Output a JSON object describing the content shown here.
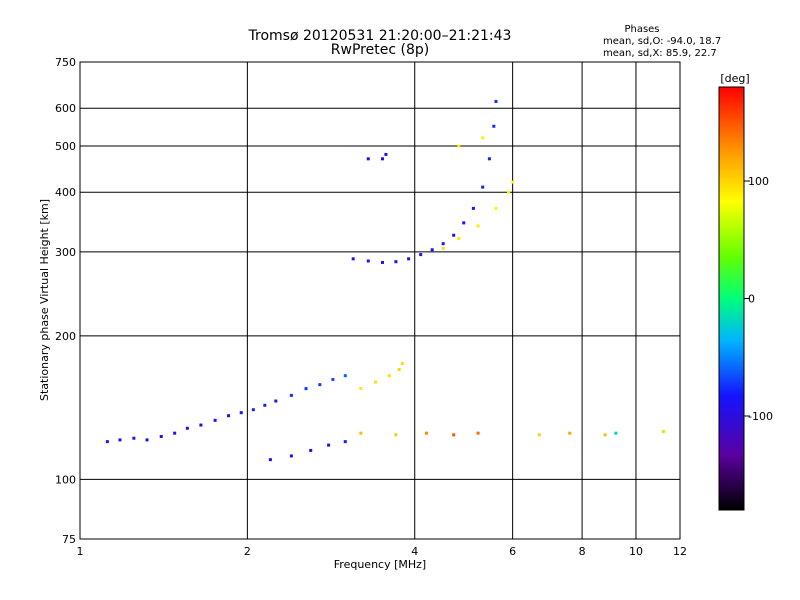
{
  "chart_data": {
    "type": "scatter",
    "title": "Tromsø 20120531 21:20:00–21:21:43",
    "subtitle": "RwPretec (8p)",
    "phases_panel": {
      "heading": "Phases",
      "line1": "mean, sd,O: -94.0, 18.7",
      "line2": "mean, sd,X: 85.9, 22.7"
    },
    "xlabel": "Frequency [MHz]",
    "ylabel": "Stationary phase Virtual Height [km]",
    "x_scale": "log",
    "y_scale": "log",
    "xlim": [
      1,
      12
    ],
    "ylim": [
      75,
      750
    ],
    "x_ticks": [
      1,
      2,
      4,
      6,
      8,
      10,
      12
    ],
    "y_ticks": [
      75,
      100,
      200,
      300,
      400,
      500,
      600,
      750
    ],
    "grid": true,
    "colorbar": {
      "label": "[deg]",
      "ticks": [
        100,
        0,
        -100
      ],
      "range": [
        -180,
        180
      ],
      "colormap": "rainbow"
    },
    "series": [
      {
        "kind": "traces",
        "points": [
          [
            1.12,
            120,
            -95
          ],
          [
            1.18,
            121,
            -92
          ],
          [
            1.25,
            122,
            -98
          ],
          [
            1.32,
            121,
            -90
          ],
          [
            1.4,
            123,
            -96
          ],
          [
            1.48,
            125,
            -88
          ],
          [
            1.56,
            128,
            -94
          ],
          [
            1.65,
            130,
            -91
          ],
          [
            1.75,
            133,
            -86
          ],
          [
            1.85,
            136,
            -89
          ],
          [
            1.95,
            138,
            -84
          ],
          [
            2.05,
            140,
            -80
          ],
          [
            2.15,
            143,
            -78
          ],
          [
            2.25,
            146,
            -82
          ],
          [
            2.4,
            150,
            -75
          ],
          [
            2.55,
            155,
            -72
          ],
          [
            2.7,
            158,
            -70
          ],
          [
            2.85,
            162,
            -68
          ],
          [
            3.0,
            165,
            -60
          ],
          [
            2.2,
            110,
            -90
          ],
          [
            2.4,
            112,
            -88
          ],
          [
            2.6,
            115,
            -86
          ],
          [
            2.8,
            118,
            -84
          ],
          [
            3.0,
            120,
            -80
          ],
          [
            3.1,
            290,
            -95
          ],
          [
            3.3,
            287,
            -97
          ],
          [
            3.5,
            285,
            -98
          ],
          [
            3.7,
            286,
            -96
          ],
          [
            3.9,
            290,
            -94
          ],
          [
            4.1,
            296,
            -92
          ],
          [
            4.3,
            303,
            -90
          ],
          [
            4.5,
            312,
            -88
          ],
          [
            4.7,
            325,
            -86
          ],
          [
            4.9,
            345,
            -84
          ],
          [
            5.1,
            370,
            -82
          ],
          [
            5.3,
            410,
            -80
          ],
          [
            5.45,
            470,
            -78
          ],
          [
            5.55,
            550,
            -76
          ],
          [
            5.6,
            620,
            -75
          ],
          [
            3.3,
            470,
            -90
          ],
          [
            3.5,
            470,
            -92
          ],
          [
            3.55,
            480,
            -88
          ],
          [
            4.5,
            305,
            96
          ],
          [
            4.8,
            320,
            92
          ],
          [
            5.2,
            340,
            90
          ],
          [
            5.6,
            370,
            88
          ],
          [
            5.9,
            400,
            86
          ],
          [
            6.0,
            420,
            84
          ],
          [
            4.8,
            500,
            90
          ],
          [
            5.3,
            520,
            88
          ],
          [
            3.2,
            155,
            92
          ],
          [
            3.4,
            160,
            95
          ],
          [
            3.6,
            165,
            97
          ],
          [
            3.75,
            170,
            100
          ],
          [
            3.8,
            175,
            96
          ],
          [
            3.2,
            125,
            110
          ],
          [
            3.7,
            124,
            105
          ],
          [
            4.2,
            125,
            130
          ],
          [
            4.7,
            124,
            150
          ],
          [
            5.2,
            125,
            140
          ],
          [
            6.7,
            124,
            100
          ],
          [
            7.6,
            125,
            120
          ],
          [
            8.8,
            124,
            110
          ],
          [
            9.2,
            125,
            -20
          ],
          [
            11.2,
            126,
            60
          ]
        ]
      }
    ]
  }
}
